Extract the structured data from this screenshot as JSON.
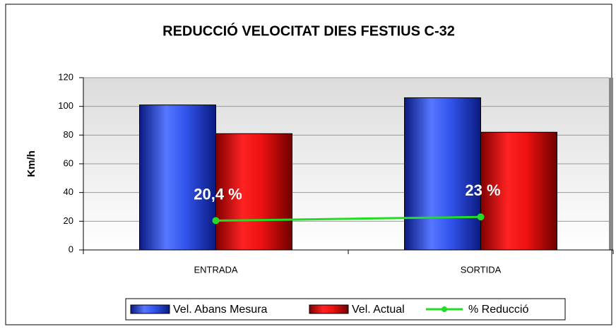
{
  "chart_data": {
    "type": "bar",
    "title": "REDUCCIÓ VELOCITAT DIES FESTIUS C-32",
    "y_label": "Km/h",
    "categories": [
      "ENTRADA",
      "SORTIDA"
    ],
    "series": [
      {
        "name": "Vel. Abans Mesura",
        "color": "#3355ee",
        "values": [
          101,
          106
        ]
      },
      {
        "name": "Vel. Actual",
        "color": "#ee1111",
        "values": [
          81,
          82
        ]
      },
      {
        "name": "% Reducció",
        "type": "line",
        "color": "#22dd22",
        "values": [
          20.4,
          23
        ],
        "value_labels": [
          "20,4 %",
          "23 %"
        ]
      }
    ],
    "ylim": [
      0,
      120
    ],
    "yticks": [
      0,
      20,
      40,
      60,
      80,
      100,
      120
    ],
    "grid": true,
    "legend": "bottom"
  }
}
